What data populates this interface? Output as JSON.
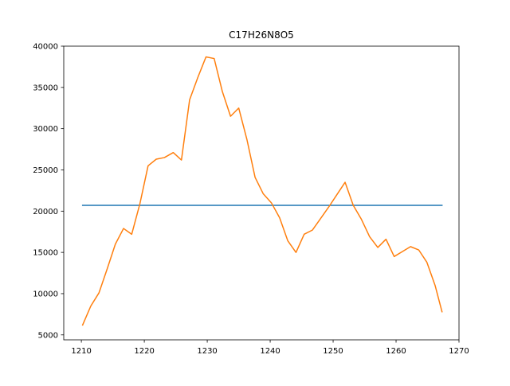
{
  "chart_data": {
    "type": "line",
    "title": "C17H26N8O5",
    "xlabel": "",
    "ylabel": "",
    "xlim": [
      1207.2,
      1270.0
    ],
    "ylim": [
      4400,
      40000
    ],
    "xticks": [
      1210,
      1220,
      1230,
      1240,
      1250,
      1260,
      1270
    ],
    "yticks": [
      5000,
      10000,
      15000,
      20000,
      25000,
      30000,
      35000,
      40000
    ],
    "grid": false,
    "legend": "none",
    "series": [
      {
        "color": "#1f77b4",
        "x": [
          1210.2,
          1267.3
        ],
        "y": [
          20700,
          20700
        ]
      },
      {
        "color": "#ff7f0e",
        "x": [
          1210.2,
          1211.5,
          1212.8,
          1214.1,
          1215.4,
          1216.7,
          1218.0,
          1219.3,
          1220.6,
          1221.9,
          1223.2,
          1224.6,
          1225.9,
          1227.2,
          1228.5,
          1229.8,
          1231.1,
          1232.4,
          1233.7,
          1235.0,
          1236.3,
          1237.6,
          1238.9,
          1240.2,
          1241.5,
          1242.8,
          1244.1,
          1245.4,
          1246.7,
          1248.0,
          1249.3,
          1250.6,
          1251.9,
          1253.2,
          1254.5,
          1255.8,
          1257.1,
          1258.4,
          1259.7,
          1261.0,
          1262.3,
          1263.6,
          1264.9,
          1266.2,
          1267.3
        ],
        "y": [
          6200,
          8500,
          10100,
          13000,
          16000,
          17900,
          17200,
          20900,
          25500,
          26300,
          26500,
          27100,
          26200,
          33500,
          36200,
          38700,
          38500,
          34500,
          31500,
          32500,
          28700,
          24100,
          22100,
          21000,
          19200,
          16400,
          15000,
          17200,
          17700,
          19100,
          20500,
          22000,
          23500,
          20700,
          19000,
          16900,
          15600,
          16600,
          14500,
          15100,
          15700,
          15300,
          13800,
          11000,
          7800
        ]
      }
    ]
  }
}
